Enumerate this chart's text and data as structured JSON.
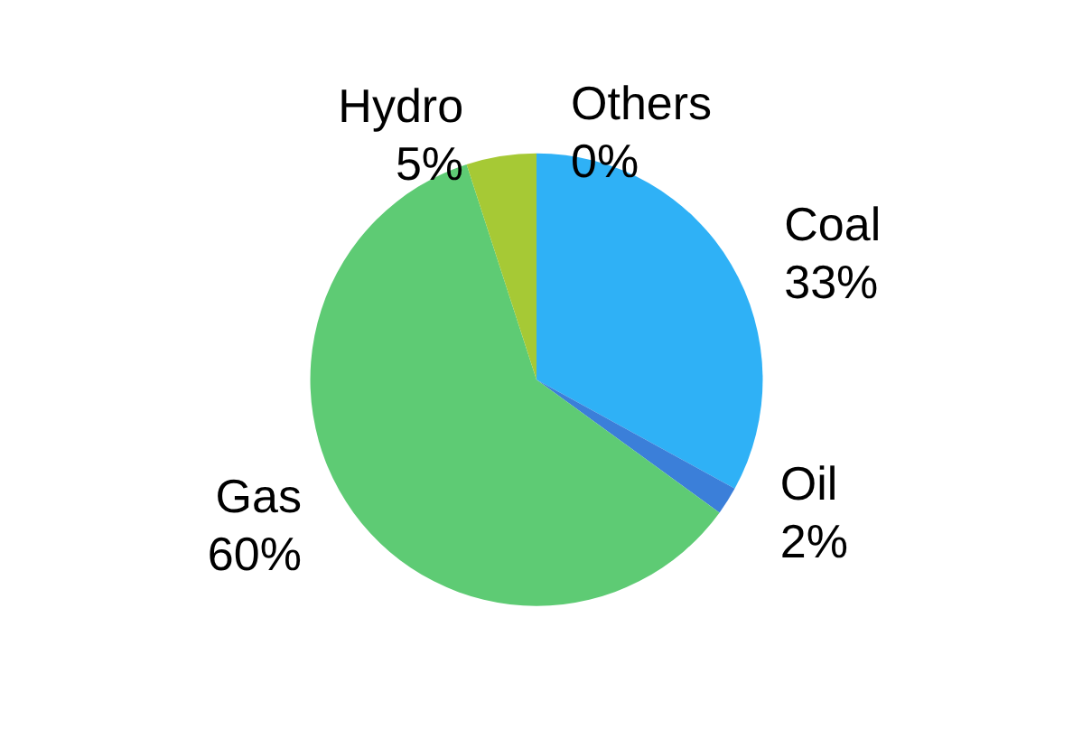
{
  "chart_data": {
    "type": "pie",
    "categories": [
      "Coal",
      "Oil",
      "Gas",
      "Hydro",
      "Others"
    ],
    "values": [
      33,
      2,
      60,
      5,
      0
    ],
    "value_labels": [
      "33%",
      "2%",
      "60%",
      "5%",
      "0%"
    ],
    "colors": [
      "#2fb1f6",
      "#3b7fd9",
      "#5ecb74",
      "#a6c935",
      "#9bbb59"
    ]
  }
}
